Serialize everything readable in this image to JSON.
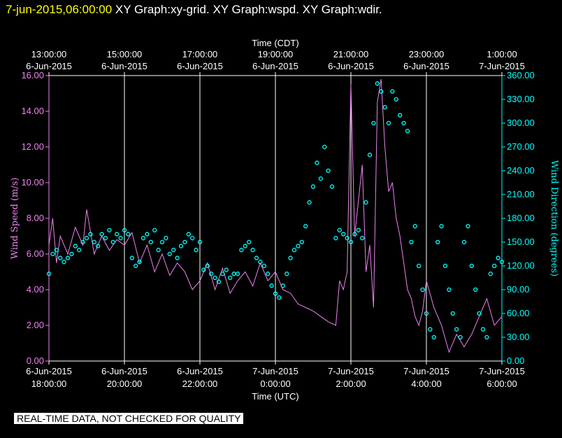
{
  "header": {
    "date_text": "7-jun-2015,06:00:00",
    "titles_text": "XY Graph:xy-grid.  XY Graph:wspd.  XY Graph:wdir."
  },
  "disclaimer": "REAL-TIME DATA, NOT CHECKED FOR QUALITY",
  "chart_data": {
    "type": "line",
    "colors": {
      "wind_speed": "#ee82ee",
      "wind_direction": "#00ffff",
      "axes": "#ffffff",
      "grid": "#ffffff"
    },
    "x_top_title": "Time (CDT)",
    "x_bottom_title": "Time (UTC)",
    "x_top_ticks": [
      {
        "time": "13:00:00",
        "date": "6-Jun-2015"
      },
      {
        "time": "15:00:00",
        "date": "6-Jun-2015"
      },
      {
        "time": "17:00:00",
        "date": "6-Jun-2015"
      },
      {
        "time": "19:00:00",
        "date": "6-Jun-2015"
      },
      {
        "time": "21:00:00",
        "date": "6-Jun-2015"
      },
      {
        "time": "23:00:00",
        "date": "6-Jun-2015"
      },
      {
        "time": "1:00:00",
        "date": "7-Jun-2015"
      }
    ],
    "x_bottom_ticks": [
      {
        "date": "6-Jun-2015",
        "time": "18:00:00"
      },
      {
        "date": "6-Jun-2015",
        "time": "20:00:00"
      },
      {
        "date": "6-Jun-2015",
        "time": "22:00:00"
      },
      {
        "date": "7-Jun-2015",
        "time": "0:00:00"
      },
      {
        "date": "7-Jun-2015",
        "time": "2:00:00"
      },
      {
        "date": "7-Jun-2015",
        "time": "4:00:00"
      },
      {
        "date": "7-Jun-2015",
        "time": "6:00:00"
      }
    ],
    "x_range_utc_hours": [
      18,
      30
    ],
    "y_left": {
      "label": "Wind Speed (m/s)",
      "range": [
        0,
        16
      ],
      "ticks": [
        "0.00",
        "2.00",
        "4.00",
        "6.00",
        "8.00",
        "10.00",
        "12.00",
        "14.00",
        "16.00"
      ]
    },
    "y_right": {
      "label": "Wind Direction (degrees)",
      "range": [
        0,
        360
      ],
      "ticks": [
        "0.00",
        "30.00",
        "60.00",
        "90.00",
        "120.00",
        "150.00",
        "180.00",
        "210.00",
        "240.00",
        "270.00",
        "300.00",
        "330.00",
        "360.00"
      ]
    },
    "grid": "vertical lines at bottom tick times",
    "series": [
      {
        "name": "Wind Speed (m/s)",
        "kind": "line",
        "axis": "left",
        "x": [
          18.0,
          18.1,
          18.2,
          18.3,
          18.5,
          18.7,
          18.9,
          19.0,
          19.2,
          19.4,
          19.6,
          19.8,
          20.0,
          20.2,
          20.4,
          20.6,
          20.8,
          21.0,
          21.2,
          21.4,
          21.6,
          21.8,
          22.0,
          22.2,
          22.4,
          22.6,
          22.8,
          23.0,
          23.2,
          23.4,
          23.6,
          23.8,
          24.0,
          24.2,
          24.4,
          24.6,
          24.8,
          25.0,
          25.2,
          25.4,
          25.6,
          25.7,
          25.8,
          25.9,
          26.0,
          26.1,
          26.2,
          26.3,
          26.4,
          26.5,
          26.6,
          26.7,
          26.8,
          26.9,
          27.0,
          27.1,
          27.2,
          27.3,
          27.4,
          27.5,
          27.6,
          27.7,
          27.8,
          27.9,
          28.0,
          28.2,
          28.4,
          28.6,
          28.8,
          29.0,
          29.2,
          29.4,
          29.6,
          29.8,
          30.0
        ],
        "values": [
          6.5,
          8.0,
          5.5,
          7.0,
          6.0,
          7.5,
          6.5,
          8.5,
          6.0,
          7.0,
          6.2,
          6.8,
          6.5,
          7.2,
          5.5,
          6.5,
          5.0,
          6.0,
          4.8,
          5.5,
          5.0,
          4.0,
          4.5,
          5.5,
          4.0,
          5.2,
          3.8,
          4.5,
          5.0,
          4.2,
          5.5,
          4.5,
          5.0,
          4.0,
          3.8,
          3.2,
          3.0,
          2.8,
          2.5,
          2.2,
          2.0,
          4.5,
          4.0,
          5.0,
          15.5,
          7.0,
          9.0,
          11.0,
          5.0,
          6.5,
          3.0,
          14.5,
          15.8,
          12.0,
          9.5,
          10.0,
          8.0,
          7.0,
          5.5,
          4.0,
          3.5,
          2.5,
          2.0,
          2.8,
          4.5,
          3.0,
          2.0,
          0.5,
          1.5,
          0.8,
          1.5,
          2.5,
          3.5,
          2.0,
          2.5
        ]
      },
      {
        "name": "Wind Direction (degrees)",
        "kind": "scatter",
        "axis": "right",
        "x": [
          18.0,
          18.1,
          18.2,
          18.3,
          18.4,
          18.5,
          18.6,
          18.7,
          18.8,
          18.9,
          19.0,
          19.1,
          19.2,
          19.3,
          19.4,
          19.5,
          19.6,
          19.7,
          19.8,
          19.9,
          20.0,
          20.1,
          20.2,
          20.3,
          20.4,
          20.5,
          20.6,
          20.7,
          20.8,
          20.9,
          21.0,
          21.1,
          21.2,
          21.3,
          21.4,
          21.5,
          21.6,
          21.7,
          21.8,
          21.9,
          22.0,
          22.1,
          22.2,
          22.3,
          22.4,
          22.5,
          22.6,
          22.7,
          22.8,
          22.9,
          23.0,
          23.1,
          23.2,
          23.3,
          23.4,
          23.5,
          23.6,
          23.7,
          23.8,
          23.9,
          24.0,
          24.1,
          24.2,
          24.3,
          24.4,
          24.5,
          24.6,
          24.7,
          24.8,
          24.9,
          25.0,
          25.1,
          25.2,
          25.3,
          25.4,
          25.5,
          25.6,
          25.7,
          25.8,
          25.9,
          26.0,
          26.1,
          26.2,
          26.3,
          26.4,
          26.5,
          26.6,
          26.7,
          26.8,
          26.9,
          27.0,
          27.1,
          27.2,
          27.3,
          27.4,
          27.5,
          27.6,
          27.7,
          27.8,
          27.9,
          28.0,
          28.1,
          28.2,
          28.3,
          28.4,
          28.5,
          28.6,
          28.7,
          28.8,
          28.9,
          29.0,
          29.1,
          29.2,
          29.3,
          29.4,
          29.5,
          29.6,
          29.7,
          29.8,
          29.9,
          30.0
        ],
        "values": [
          110,
          135,
          140,
          130,
          125,
          130,
          135,
          145,
          140,
          150,
          155,
          160,
          150,
          145,
          160,
          155,
          165,
          150,
          160,
          155,
          165,
          160,
          130,
          120,
          125,
          155,
          160,
          150,
          165,
          140,
          150,
          155,
          135,
          140,
          130,
          145,
          150,
          160,
          155,
          140,
          150,
          115,
          120,
          110,
          105,
          100,
          110,
          115,
          105,
          110,
          110,
          140,
          145,
          150,
          140,
          130,
          125,
          120,
          110,
          95,
          85,
          80,
          95,
          110,
          130,
          140,
          145,
          150,
          170,
          200,
          220,
          250,
          230,
          270,
          240,
          220,
          155,
          165,
          160,
          155,
          150,
          160,
          165,
          155,
          200,
          260,
          300,
          350,
          340,
          320,
          300,
          340,
          330,
          310,
          300,
          290,
          150,
          170,
          120,
          90,
          60,
          40,
          30,
          150,
          170,
          120,
          90,
          60,
          40,
          30,
          150,
          170,
          120,
          90,
          60,
          40,
          30,
          110,
          120,
          130,
          125
        ]
      }
    ]
  }
}
